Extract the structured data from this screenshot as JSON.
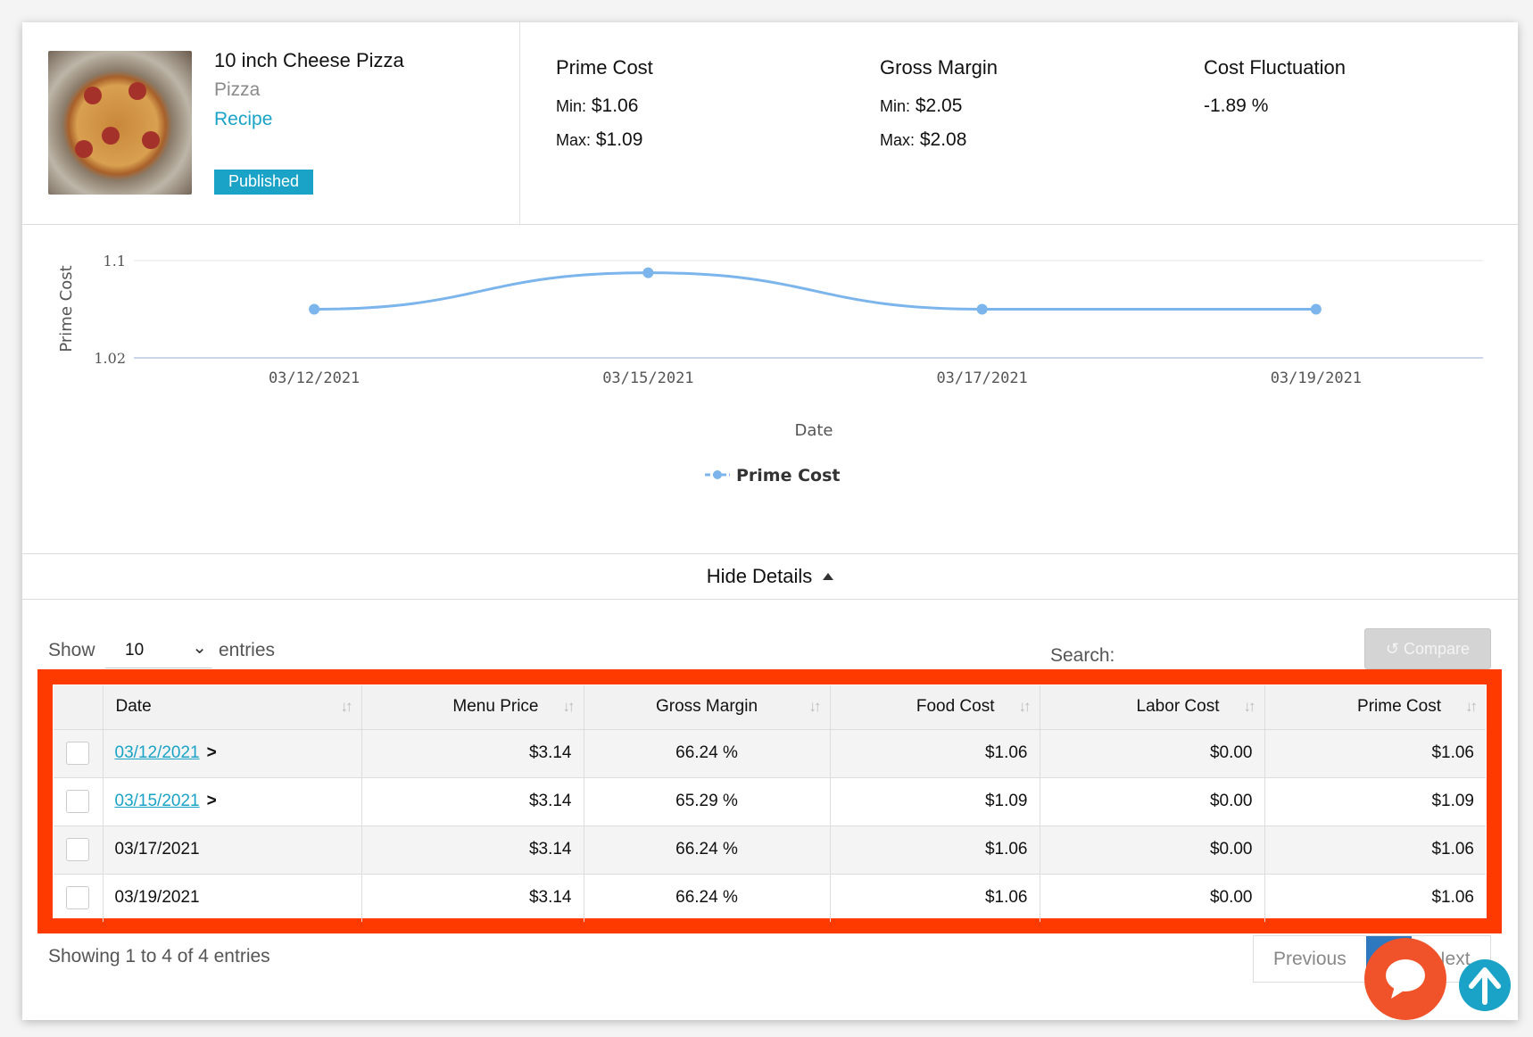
{
  "product": {
    "title": "10 inch Cheese Pizza",
    "category": "Pizza",
    "recipe_link": "Recipe",
    "status": "Published"
  },
  "stats": [
    {
      "title": "Prime Cost",
      "min_label": "Min:",
      "min": "$1.06",
      "max_label": "Max:",
      "max": "$1.09"
    },
    {
      "title": "Gross Margin",
      "min_label": "Min:",
      "min": "$2.05",
      "max_label": "Max:",
      "max": "$2.08"
    },
    {
      "title": "Cost Fluctuation",
      "value": "-1.89 %"
    }
  ],
  "chart_data": {
    "type": "line",
    "title": "",
    "xlabel": "Date",
    "ylabel": "Prime Cost",
    "x": [
      "03/12/2021",
      "03/15/2021",
      "03/17/2021",
      "03/19/2021"
    ],
    "series": [
      {
        "name": "Prime Cost",
        "values": [
          1.06,
          1.09,
          1.06,
          1.06
        ],
        "color": "#7cb5ec"
      }
    ],
    "ylim": [
      1.02,
      1.1
    ],
    "yticks": [
      "1.1",
      "1.02"
    ],
    "legend": "bottom-center",
    "grid": true
  },
  "toggle": {
    "label": "Hide Details"
  },
  "controls": {
    "show": "Show",
    "entries_value": "10",
    "entries": "entries",
    "search": "Search:",
    "compare": "Compare"
  },
  "table": {
    "headers": [
      "Date",
      "Menu Price",
      "Gross Margin",
      "Food Cost",
      "Labor Cost",
      "Prime Cost"
    ],
    "rows": [
      {
        "date": "03/12/2021",
        "menu": "$3.14",
        "gm": "66.24 %",
        "food": "$1.06",
        "labor": "$0.00",
        "prime": "$1.06"
      },
      {
        "date": "03/15/2021",
        "menu": "$3.14",
        "gm": "65.29 %",
        "food": "$1.09",
        "labor": "$0.00",
        "prime": "$1.09"
      },
      {
        "date": "03/17/2021",
        "menu": "$3.14",
        "gm": "66.24 %",
        "food": "$1.06",
        "labor": "$0.00",
        "prime": "$1.06"
      },
      {
        "date": "03/19/2021",
        "menu": "$3.14",
        "gm": "66.24 %",
        "food": "$1.06",
        "labor": "$0.00",
        "prime": "$1.06"
      }
    ]
  },
  "footer": {
    "info": "Showing 1 to 4 of 4 entries",
    "prev": "Previous",
    "page": "1",
    "next": "Next"
  },
  "colors": {
    "accent": "#1aa3c7",
    "highlight": "#ff3a00",
    "chat": "#f0522a",
    "active_page": "#2e78c0"
  }
}
